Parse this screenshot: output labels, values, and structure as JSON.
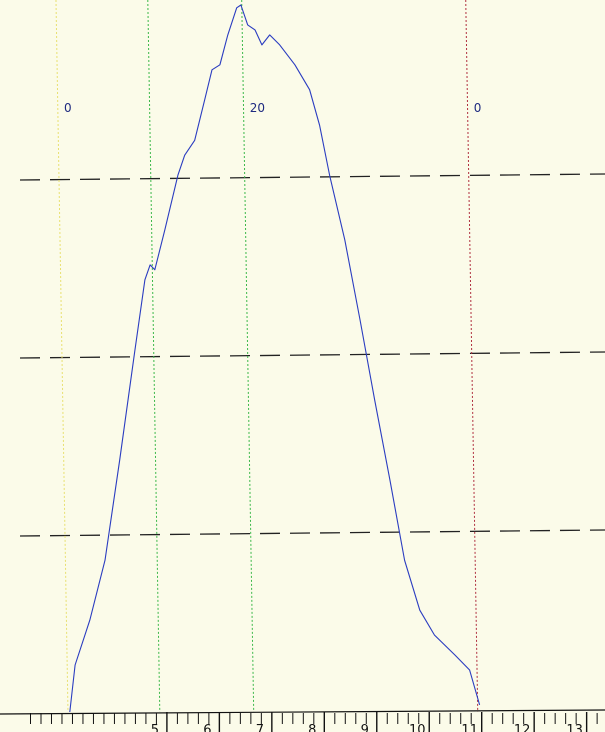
{
  "chart_data": {
    "type": "line",
    "x": [
      3.15,
      3.25,
      3.53,
      3.82,
      4.1,
      4.39,
      4.58,
      4.68,
      4.77,
      4.96,
      5.21,
      5.34,
      5.53,
      5.72,
      5.86,
      6.01,
      6.16,
      6.33,
      6.41,
      6.54,
      6.68,
      6.81,
      6.96,
      7.15,
      7.44,
      7.72,
      7.91,
      8.1,
      8.39,
      8.68,
      8.96,
      9.25,
      9.53,
      9.82,
      10.1,
      10.49,
      10.77,
      10.96
    ],
    "series": [
      {
        "color": "#2a3cc0",
        "values": [
          0,
          6.6,
          12.9,
          21.3,
          35.4,
          50.8,
          60.7,
          62.8,
          62.1,
          67.7,
          75.4,
          78.2,
          80.3,
          86.0,
          90.2,
          90.9,
          95.1,
          98.9,
          99.3,
          96.5,
          95.8,
          93.7,
          95.1,
          93.7,
          90.9,
          87.4,
          82.4,
          75.4,
          66.3,
          55.1,
          43.8,
          32.6,
          21.3,
          14.3,
          10.8,
          8.0,
          5.9,
          1.0
        ]
      }
    ],
    "xlim": [
      2.2,
      13.35
    ],
    "ylim": [
      0,
      100
    ],
    "xticks": [
      5,
      6,
      7,
      8,
      9,
      10,
      11,
      12,
      13
    ],
    "xticks_minor": [
      2.4,
      2.6,
      2.8,
      3.0,
      3.2,
      3.4,
      3.6,
      3.8,
      4.0,
      4.2,
      4.4,
      4.6,
      4.8,
      5.2,
      5.4,
      5.6,
      5.8,
      6.2,
      6.4,
      6.6,
      6.8,
      7.2,
      7.4,
      7.6,
      7.8,
      8.2,
      8.4,
      8.6,
      8.8,
      9.2,
      9.4,
      9.6,
      9.8,
      10.2,
      10.4,
      10.6,
      10.8,
      11.2,
      11.4,
      11.6,
      11.8,
      12.2,
      12.4,
      12.6,
      12.8,
      13.2
    ],
    "grid_y": [
      25,
      50,
      75
    ],
    "vlines": [
      {
        "x": 3.0,
        "color": "#e8e070",
        "label": "0"
      },
      {
        "x": 4.75,
        "color": "#3cb84a"
      },
      {
        "x": 6.54,
        "color": "#3cb84a",
        "label": "20"
      },
      {
        "x": 10.81,
        "color": "#b03040",
        "label": "0"
      }
    ]
  }
}
